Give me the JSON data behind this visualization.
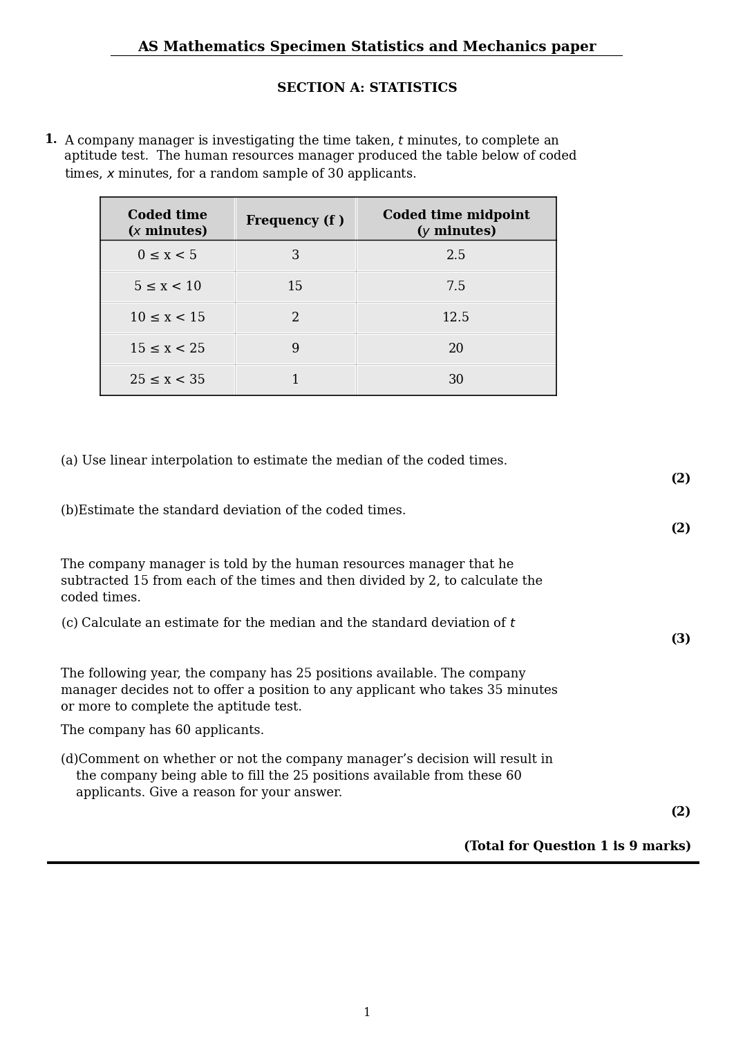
{
  "title": "AS Mathematics Specimen Statistics and Mechanics paper",
  "section": "SECTION A: STATISTICS",
  "table_rows": [
    [
      "0 ≤ x < 5",
      "3",
      "2.5"
    ],
    [
      "5 ≤ x < 10",
      "15",
      "7.5"
    ],
    [
      "10 ≤ x < 15",
      "2",
      "12.5"
    ],
    [
      "15 ≤ x < 25",
      "9",
      "20"
    ],
    [
      "25 ≤ x < 35",
      "1",
      "30"
    ]
  ],
  "bg_color": "#ffffff",
  "table_row_bg": "#e8e8e8",
  "table_header_bg": "#d4d4d4",
  "page_number": "1"
}
